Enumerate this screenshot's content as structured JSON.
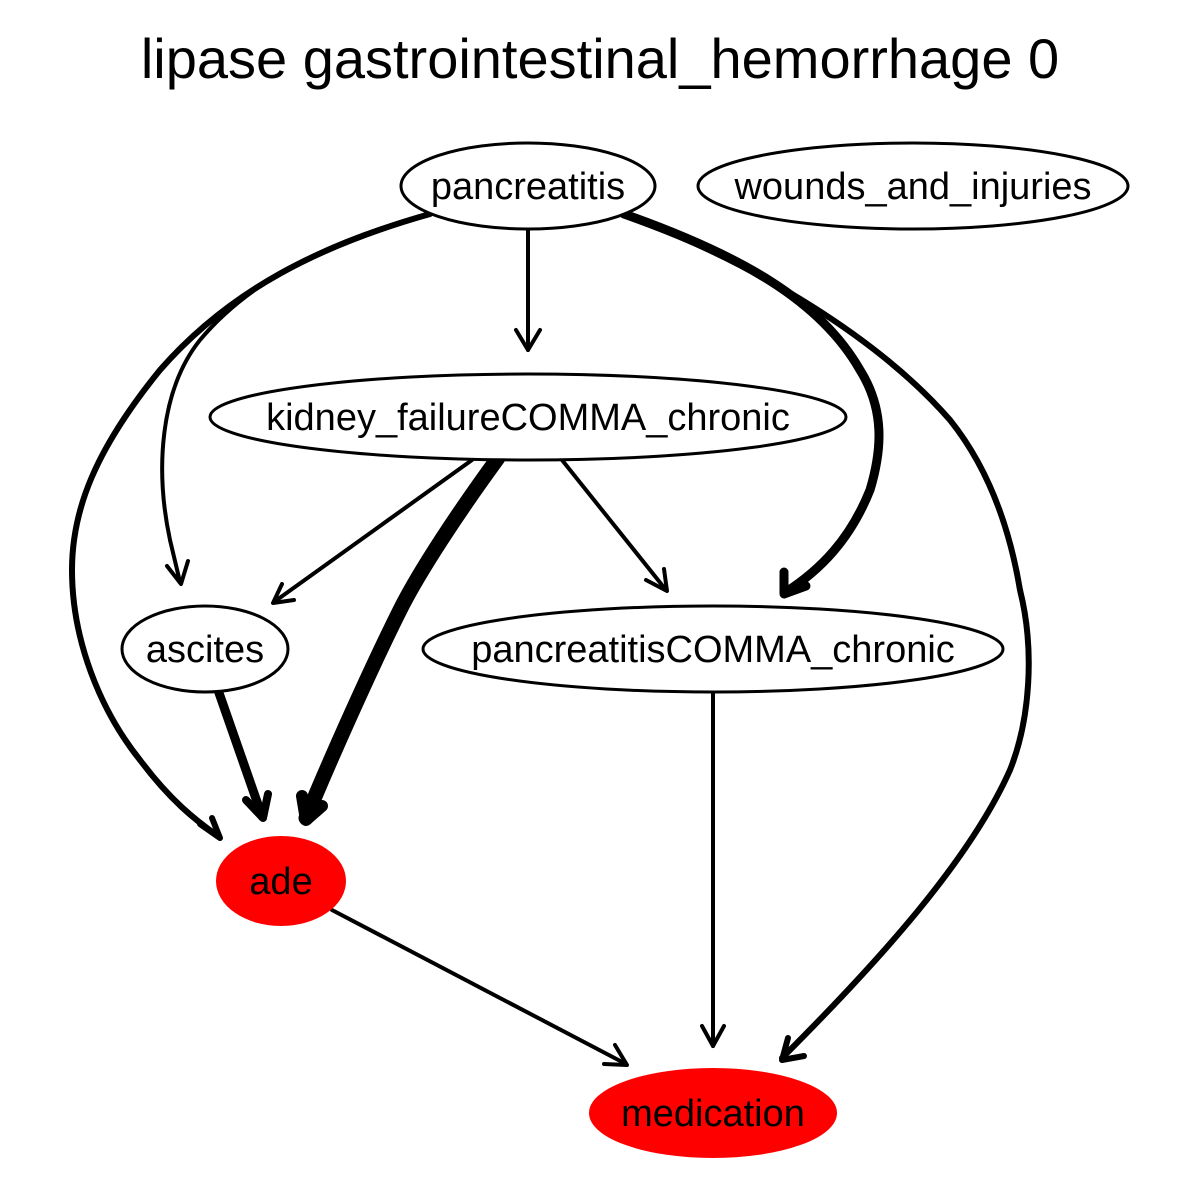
{
  "title": "lipase gastrointestinal_hemorrhage 0",
  "colors": {
    "highlight": "#ff0000",
    "edge": "#000000",
    "node_fill": "#ffffff"
  },
  "nodes": {
    "pancreatitis": {
      "label": "pancreatitis",
      "highlighted": false
    },
    "wounds_and_injuries": {
      "label": "wounds_and_injuries",
      "highlighted": false
    },
    "kidney_failure_chronic": {
      "label": "kidney_failureCOMMA_chronic",
      "highlighted": false
    },
    "ascites": {
      "label": "ascites",
      "highlighted": false
    },
    "pancreatitis_chronic": {
      "label": "pancreatitisCOMMA_chronic",
      "highlighted": false
    },
    "ade": {
      "label": "ade",
      "highlighted": true
    },
    "medication": {
      "label": "medication",
      "highlighted": true
    }
  },
  "edges": [
    {
      "from": "pancreatitis",
      "to": "kidney_failure_chronic"
    },
    {
      "from": "pancreatitis",
      "to": "ascites"
    },
    {
      "from": "pancreatitis",
      "to": "ade"
    },
    {
      "from": "pancreatitis",
      "to": "pancreatitis_chronic"
    },
    {
      "from": "pancreatitis",
      "to": "medication"
    },
    {
      "from": "kidney_failure_chronic",
      "to": "ascites"
    },
    {
      "from": "kidney_failure_chronic",
      "to": "ade"
    },
    {
      "from": "kidney_failure_chronic",
      "to": "pancreatitis_chronic"
    },
    {
      "from": "ascites",
      "to": "ade"
    },
    {
      "from": "pancreatitis_chronic",
      "to": "medication"
    },
    {
      "from": "ade",
      "to": "medication"
    }
  ]
}
